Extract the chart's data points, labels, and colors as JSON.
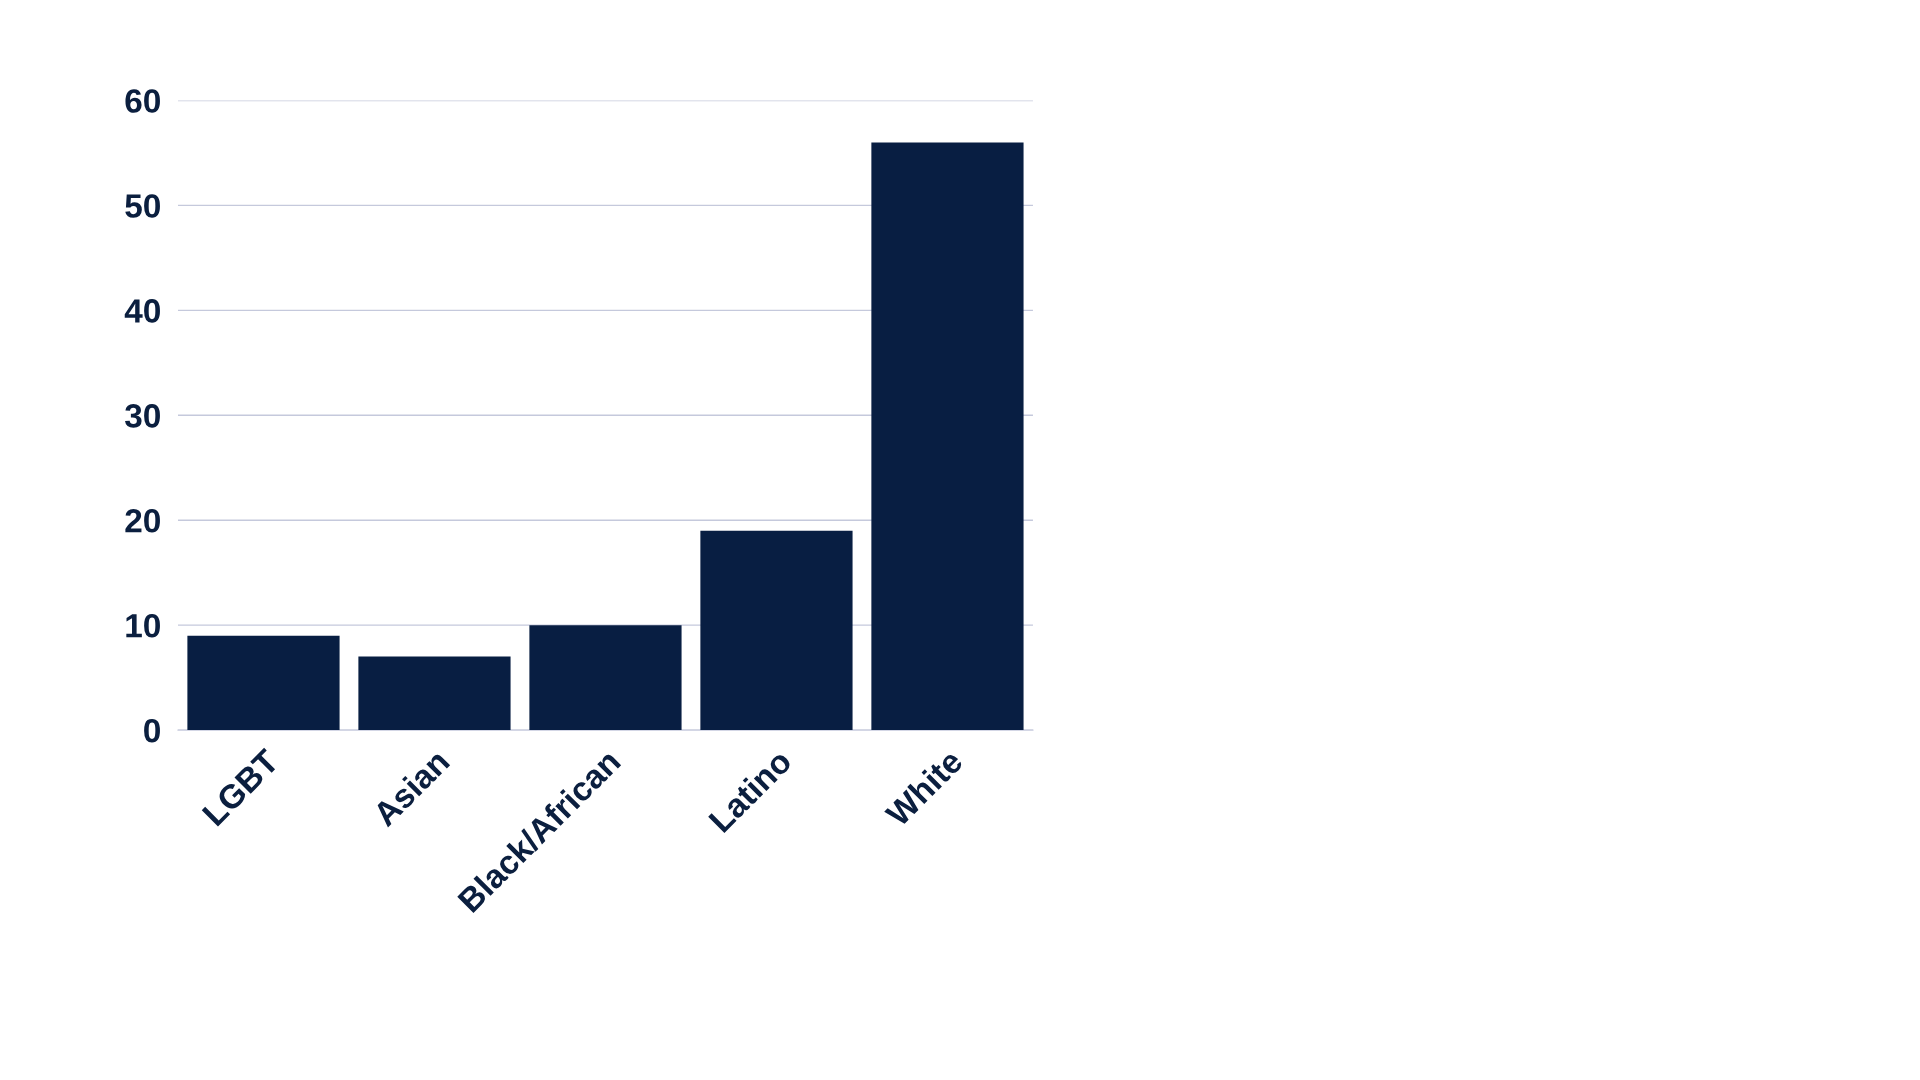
{
  "chart_data": {
    "type": "bar",
    "categories": [
      "LGBT",
      "Asian",
      "Black/African",
      "Latino",
      "White"
    ],
    "values": [
      9,
      7,
      10,
      19,
      56
    ],
    "color": "#081e42",
    "ylim": [
      0,
      60
    ],
    "yticks": [
      0,
      10,
      20,
      30,
      40,
      50,
      60
    ],
    "grid": "y"
  }
}
